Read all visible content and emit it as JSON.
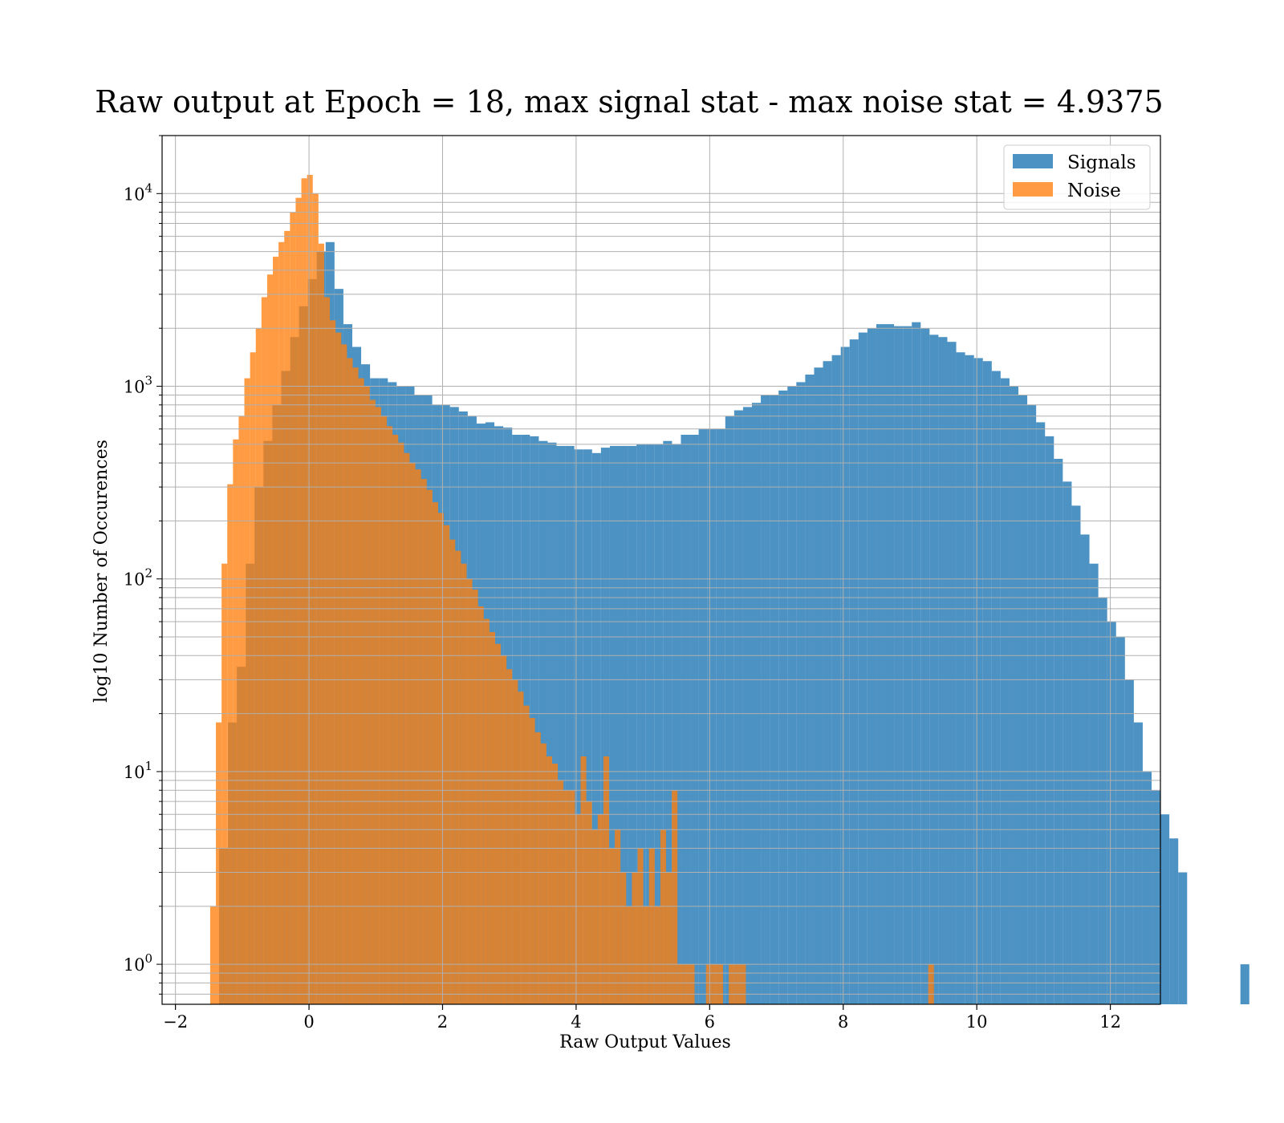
{
  "chart_data": {
    "type": "bar",
    "title": "Raw output at Epoch = 18, max signal stat - max noise stat = 4.9375",
    "xlabel": "Raw Output Values",
    "ylabel": "log10 Number of Occurences",
    "xlim": [
      -2.2,
      12.75
    ],
    "ylim": [
      0.62,
      20000
    ],
    "yscale": "log",
    "grid": true,
    "x_ticks": [
      {
        "value": -2,
        "label": "−2"
      },
      {
        "value": 0,
        "label": "0"
      },
      {
        "value": 2,
        "label": "2"
      },
      {
        "value": 4,
        "label": "4"
      },
      {
        "value": 6,
        "label": "6"
      },
      {
        "value": 8,
        "label": "8"
      },
      {
        "value": 10,
        "label": "10"
      },
      {
        "value": 12,
        "label": "12"
      }
    ],
    "y_ticks": [
      {
        "value": 1,
        "base": "10",
        "exp": "0"
      },
      {
        "value": 10,
        "base": "10",
        "exp": "1"
      },
      {
        "value": 100,
        "base": "10",
        "exp": "2"
      },
      {
        "value": 1000,
        "base": "10",
        "exp": "3"
      },
      {
        "value": 10000,
        "base": "10",
        "exp": "4"
      }
    ],
    "legend": {
      "placement": "top-right"
    },
    "series": [
      {
        "name": "Signals",
        "color": "#1f77b4",
        "bin_start": -1.48,
        "bin_width": 0.133,
        "values": [
          0,
          4,
          18,
          35,
          120,
          300,
          520,
          800,
          1200,
          1800,
          2600,
          3600,
          5000,
          5600,
          3200,
          2100,
          1600,
          1300,
          1100,
          1100,
          1050,
          1000,
          1000,
          900,
          900,
          800,
          800,
          780,
          740,
          700,
          640,
          650,
          620,
          610,
          560,
          560,
          550,
          520,
          510,
          490,
          490,
          470,
          470,
          450,
          480,
          490,
          490,
          490,
          500,
          500,
          500,
          520,
          500,
          560,
          560,
          600,
          600,
          600,
          700,
          750,
          780,
          820,
          900,
          900,
          950,
          1000,
          1050,
          1150,
          1250,
          1350,
          1450,
          1600,
          1750,
          1900,
          2000,
          2100,
          2100,
          2050,
          2050,
          2150,
          2000,
          1850,
          1800,
          1700,
          1500,
          1450,
          1400,
          1350,
          1200,
          1100,
          1000,
          900,
          800,
          650,
          550,
          420,
          320,
          240,
          170,
          120,
          80,
          60,
          50,
          30,
          18,
          10,
          8,
          6,
          4.5,
          3,
          0,
          0,
          0,
          0,
          0,
          0,
          1
        ]
      },
      {
        "name": "Noise",
        "color": "#ff7f0e",
        "bin_start": -1.48,
        "bin_width": 0.08534,
        "values": [
          2,
          18,
          120,
          310,
          530,
          700,
          1100,
          1500,
          2000,
          2900,
          3800,
          4700,
          5600,
          6400,
          8000,
          9500,
          12000,
          12500,
          10000,
          5500,
          2900,
          2200,
          1900,
          1650,
          1400,
          1250,
          1100,
          1000,
          850,
          780,
          700,
          620,
          560,
          510,
          450,
          400,
          370,
          330,
          290,
          250,
          220,
          190,
          160,
          140,
          120,
          100,
          88,
          72,
          62,
          53,
          46,
          40,
          34,
          30,
          26,
          22,
          19,
          16,
          14,
          12,
          11,
          9,
          8,
          8,
          6,
          12,
          7,
          5,
          6,
          12,
          4,
          5,
          3,
          2,
          3,
          4,
          2,
          4,
          2,
          5,
          3,
          8,
          1,
          1,
          1,
          0,
          0,
          1,
          1,
          1,
          0,
          1,
          1,
          1,
          0,
          0,
          0,
          0,
          0,
          0,
          0,
          0,
          0,
          0,
          0,
          0,
          0,
          0,
          0,
          0,
          0,
          0,
          0,
          0,
          0,
          0,
          0,
          0,
          0,
          0,
          0,
          0,
          0,
          0,
          0,
          0,
          1
        ]
      }
    ]
  }
}
